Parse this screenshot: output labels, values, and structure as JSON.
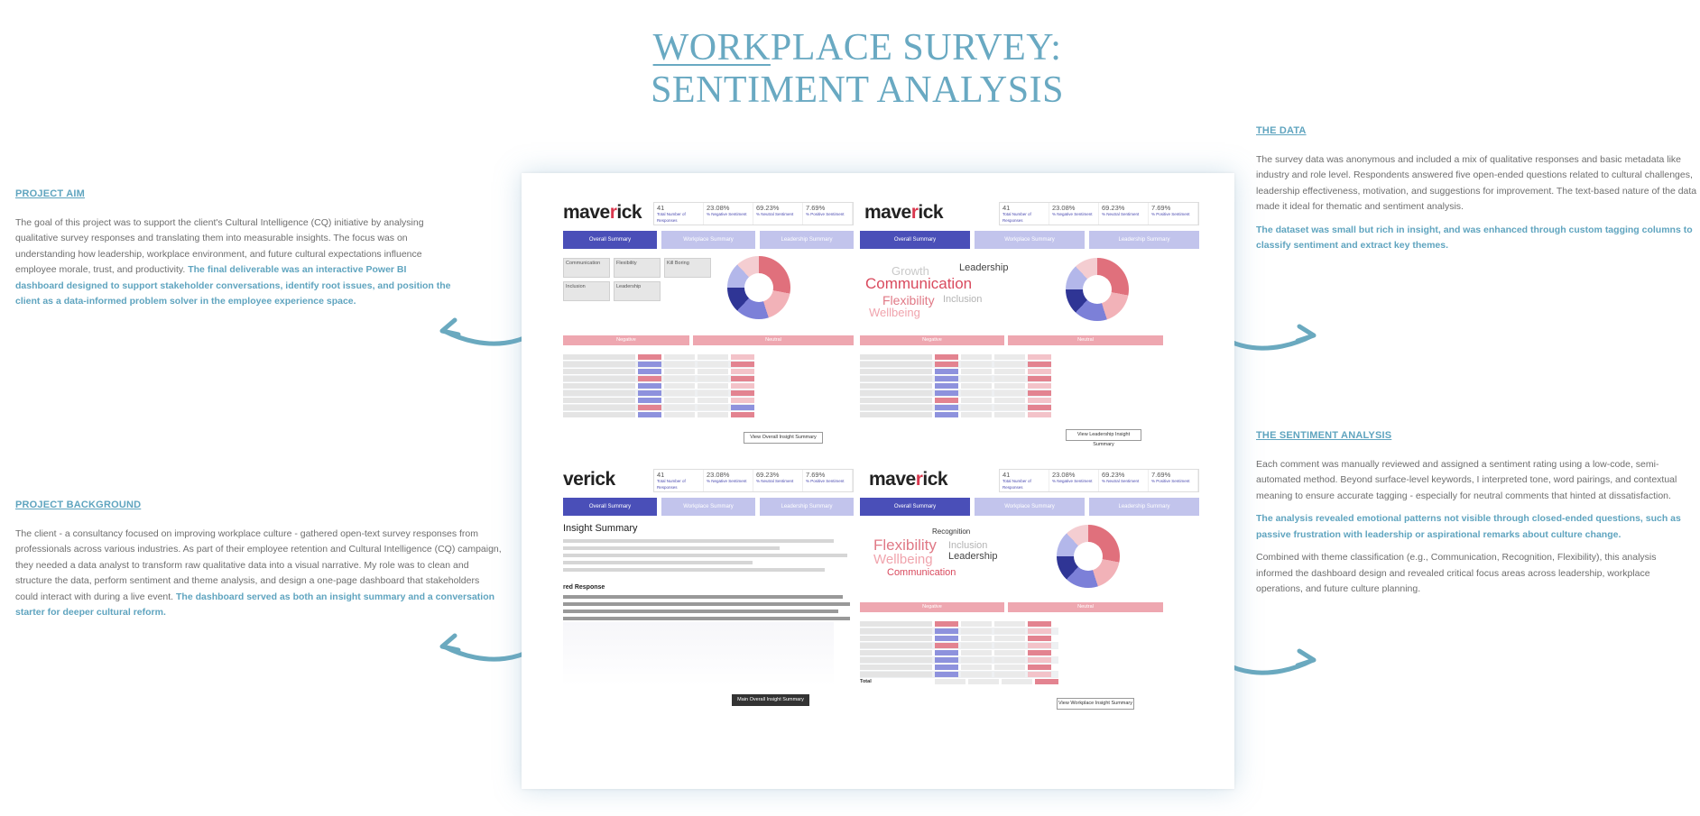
{
  "title": {
    "line1_underlined": "WORK",
    "line1_rest": "PLACE SURVEY:",
    "line2": "SENTIMENT ANALYSIS"
  },
  "project_aim": {
    "heading": "PROJECT AIM",
    "body": "The goal of this project was to support the client's Cultural Intelligence (CQ) initiative by analysing qualitative survey responses and translating them into measurable insights. The focus was on understanding how leadership, workplace environment, and future cultural expectations influence employee morale, trust, and productivity. ",
    "highlight": "The final deliverable was an interactive Power BI dashboard designed to support stakeholder conversations, identify root issues, and position the client as a data-informed problem solver in the employee experience space."
  },
  "project_background": {
    "heading": "PROJECT BACKGROUND",
    "body": "The client - a consultancy focused on improving workplace culture - gathered open-text survey responses from professionals across various industries. As part of their employee retention and Cultural Intelligence (CQ) campaign, they needed a data analyst to transform raw qualitative data into a visual narrative. My role was to clean and structure the data, perform sentiment and theme analysis, and design a one-page dashboard that stakeholders could interact with during a live event. ",
    "highlight": "The dashboard served as both an insight summary and a conversation starter for deeper cultural reform."
  },
  "the_data": {
    "heading": "THE DATA",
    "body": "The survey data was anonymous and included a mix of qualitative responses and basic metadata like industry and role level. Respondents answered five open-ended questions related to cultural challenges, leadership effectiveness, motivation, and suggestions for improvement. The text-based nature of the data made it ideal for thematic and sentiment analysis.",
    "highlight": "The dataset was small but rich in insight, and was enhanced through custom tagging columns to classify sentiment and extract key themes."
  },
  "sentiment_analysis": {
    "heading": "THE SENTIMENT ANALYSIS",
    "body1": "Each comment was manually reviewed and assigned a sentiment rating using a low-code, semi-automated method. Beyond surface-level keywords, I interpreted tone, word pairings, and contextual meaning to ensure accurate tagging - especially for neutral comments that hinted at dissatisfaction.",
    "highlight": "The analysis revealed emotional patterns not visible through closed-ended questions, such as passive frustration with leadership or aspirational remarks about culture change.",
    "body2": "Combined with theme classification (e.g., Communication, Recognition, Flexibility), this analysis informed the dashboard design and revealed critical focus areas across leadership, workplace operations, and future culture planning."
  },
  "dashboard": {
    "logo_pre": "mave",
    "logo_r": "r",
    "logo_post": "ick",
    "logo_cut": "verick",
    "kpis": [
      {
        "value": "41",
        "label": "Total Number of Responses"
      },
      {
        "value": "23.08%",
        "label": "% Negative Sentiment"
      },
      {
        "value": "69.23%",
        "label": "% Neutral Sentiment"
      },
      {
        "value": "7.69%",
        "label": "% Positive Sentiment"
      }
    ],
    "tabs": [
      "Overall Summary",
      "Workplace Summary",
      "Leadership Summary"
    ],
    "bands": [
      "Negative",
      "Neutral"
    ],
    "tiles": [
      "Communication",
      "Flexibility",
      "Kill Boring",
      "Inclusion",
      "Leadership"
    ],
    "insight_title": "Insight Summary",
    "insight_subtitle": "red Response",
    "cloud_words": [
      "Growth",
      "Leadership",
      "Communication",
      "Inclusion",
      "Flexibility",
      "Wellbeing",
      "Recognition"
    ],
    "buttons": [
      "View Overall Insight Summary",
      "View Leadership Insight Summary",
      "Main Overall Insight Summary",
      "View Workplace Insight Summary"
    ],
    "total_label": "Total"
  }
}
